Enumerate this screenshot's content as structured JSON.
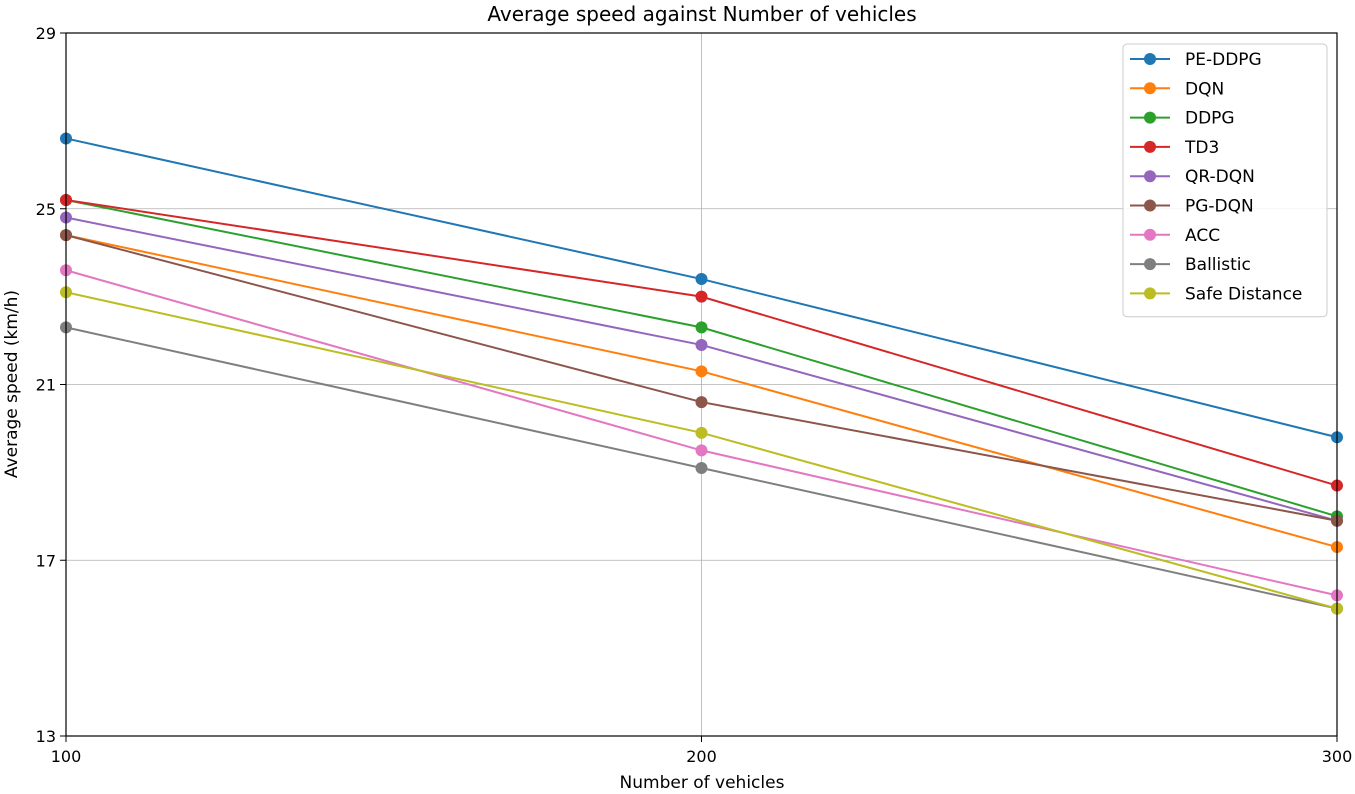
{
  "chart_data": {
    "type": "line",
    "title": "Average speed against Number of vehicles",
    "xlabel": "Number of vehicles",
    "ylabel": "Average speed (km/h)",
    "x": [
      100,
      200,
      300
    ],
    "xlim": [
      100,
      300
    ],
    "ylim": [
      13,
      29
    ],
    "xticks": [
      100,
      200,
      300
    ],
    "yticks": [
      13,
      17,
      21,
      25,
      29
    ],
    "grid": true,
    "legend_position": "top-right",
    "series": [
      {
        "name": "PE-DDPG",
        "color": "#1f77b4",
        "values": [
          26.6,
          23.4,
          19.8
        ]
      },
      {
        "name": "DQN",
        "color": "#ff7f0e",
        "values": [
          24.4,
          21.3,
          17.3
        ]
      },
      {
        "name": "DDPG",
        "color": "#2ca02c",
        "values": [
          25.2,
          22.3,
          18.0
        ]
      },
      {
        "name": "TD3",
        "color": "#d62728",
        "values": [
          25.2,
          23.0,
          18.7
        ]
      },
      {
        "name": "QR-DQN",
        "color": "#9467bd",
        "values": [
          24.8,
          21.9,
          17.9
        ]
      },
      {
        "name": "PG-DQN",
        "color": "#8c564b",
        "values": [
          24.4,
          20.6,
          17.9
        ]
      },
      {
        "name": "ACC",
        "color": "#e377c2",
        "values": [
          23.6,
          19.5,
          16.2
        ]
      },
      {
        "name": "Ballistic",
        "color": "#7f7f7f",
        "values": [
          22.3,
          19.1,
          15.9
        ]
      },
      {
        "name": "Safe Distance",
        "color": "#bcbd22",
        "values": [
          23.1,
          19.9,
          15.9
        ]
      }
    ]
  }
}
